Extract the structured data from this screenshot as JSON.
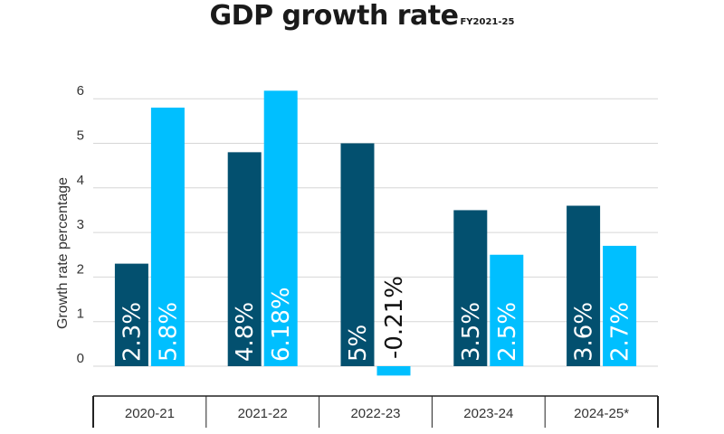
{
  "chart_data": {
    "type": "bar",
    "title": "GDP growth rate",
    "subtitle": "FY2021-25",
    "xlabel": "",
    "ylabel": "Growth rate percentage",
    "ylim": [
      -0.2,
      6.2
    ],
    "yticks": [
      0,
      1,
      2,
      3,
      4,
      5,
      6
    ],
    "grid": true,
    "legend": "none",
    "categories": [
      "2020-21",
      "2021-22",
      "2022-23",
      "2023-24",
      "2024-25*"
    ],
    "series": [
      {
        "color": "#03506F",
        "values": [
          2.3,
          4.8,
          5,
          3.5,
          3.6
        ],
        "labels": [
          "2.3%",
          "4.8%",
          "5%",
          "3.5%",
          "3.6%"
        ]
      },
      {
        "color": "#00BFFF",
        "values": [
          5.8,
          6.18,
          -0.21,
          2.5,
          2.7
        ],
        "labels": [
          "5.8%",
          "6.18%",
          "-0.21%",
          "2.5%",
          "2.7%"
        ]
      }
    ]
  }
}
